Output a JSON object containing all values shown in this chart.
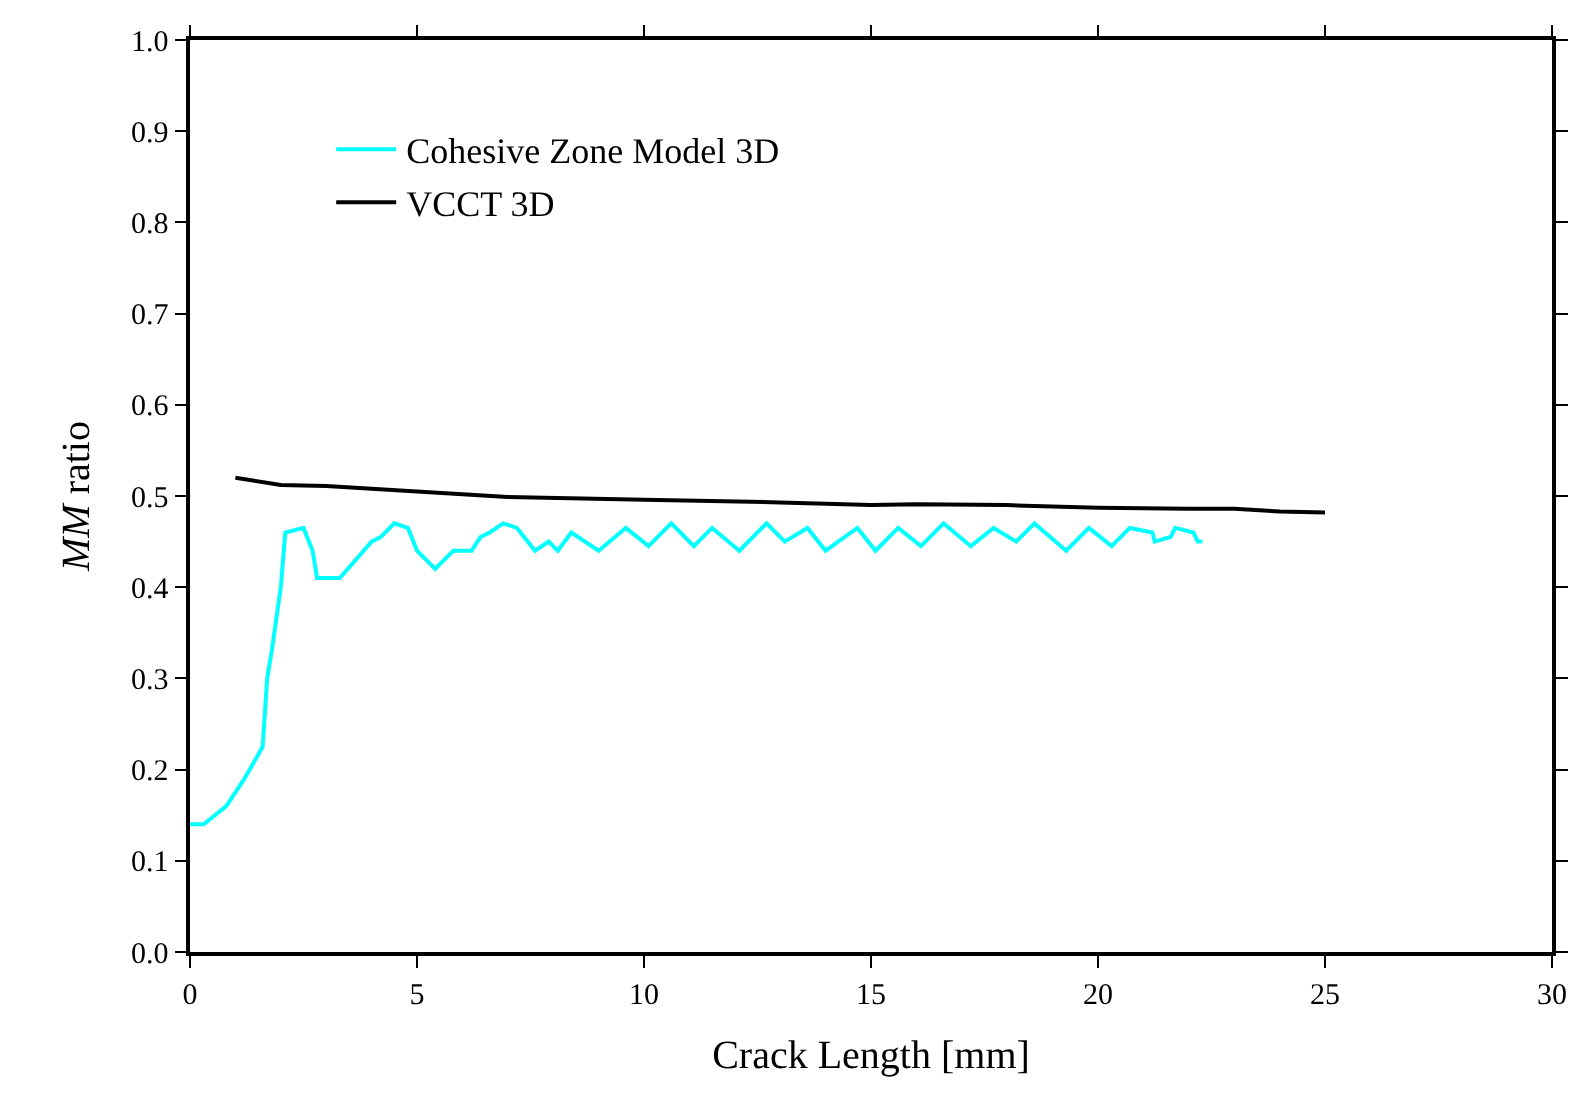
{
  "chart_data": {
    "type": "line",
    "xlabel": "Crack Length [mm]",
    "ylabel": "MM ratio",
    "xlim": [
      0,
      30
    ],
    "xticks": [
      0,
      5,
      10,
      15,
      20,
      25,
      30
    ],
    "ylim": [
      0,
      1
    ],
    "yticks": [
      {
        "value": 0,
        "label": "0.0"
      },
      0.1,
      0.2,
      0.3,
      0.4,
      0.5,
      0.6,
      0.7,
      0.8,
      0.9,
      {
        "value": 1,
        "label": "1.0"
      }
    ],
    "legend": "top left",
    "marker": "none",
    "line_style": "solid",
    "series": [
      {
        "name": "Cohesive Zone Model 3D",
        "color": "#00ffff",
        "x": [
          0,
          0.3,
          0.8,
          1.2,
          1.6,
          1.7,
          1.8,
          2.0,
          2.1,
          2.5,
          2.7,
          2.8,
          3.3,
          4.0,
          4.2,
          4.5,
          4.8,
          5.0,
          5.4,
          5.8,
          6.2,
          6.4,
          6.6,
          6.9,
          7.2,
          7.6,
          7.9,
          8.1,
          8.4,
          9.0,
          9.6,
          10.1,
          10.6,
          11.1,
          11.5,
          12.1,
          12.7,
          13.1,
          13.6,
          14.0,
          14.7,
          15.1,
          15.6,
          16.1,
          16.6,
          17.2,
          17.7,
          18.2,
          18.6,
          19.3,
          19.8,
          20.3,
          20.7,
          21.2,
          21.25,
          21.6,
          21.7,
          22.1,
          22.2,
          22.3
        ],
        "values": [
          0.14,
          0.14,
          0.16,
          0.19,
          0.225,
          0.3,
          0.33,
          0.4,
          0.46,
          0.465,
          0.44,
          0.41,
          0.41,
          0.45,
          0.455,
          0.47,
          0.465,
          0.44,
          0.42,
          0.44,
          0.44,
          0.455,
          0.46,
          0.47,
          0.465,
          0.44,
          0.45,
          0.44,
          0.46,
          0.44,
          0.465,
          0.445,
          0.47,
          0.445,
          0.465,
          0.44,
          0.47,
          0.45,
          0.465,
          0.44,
          0.465,
          0.44,
          0.465,
          0.445,
          0.47,
          0.445,
          0.465,
          0.45,
          0.47,
          0.44,
          0.465,
          0.445,
          0.465,
          0.46,
          0.45,
          0.455,
          0.465,
          0.46,
          0.45,
          0.45
        ]
      },
      {
        "name": "VCCT 3D",
        "color": "#000000",
        "x": [
          1.0,
          2.0,
          3.0,
          5.0,
          7.0,
          10.0,
          13.0,
          15.0,
          16.0,
          18.0,
          20.0,
          22.0,
          23.0,
          24.0,
          25.0
        ],
        "values": [
          0.52,
          0.512,
          0.511,
          0.505,
          0.499,
          0.496,
          0.493,
          0.49,
          0.491,
          0.49,
          0.487,
          0.486,
          0.486,
          0.483,
          0.482
        ]
      }
    ]
  }
}
